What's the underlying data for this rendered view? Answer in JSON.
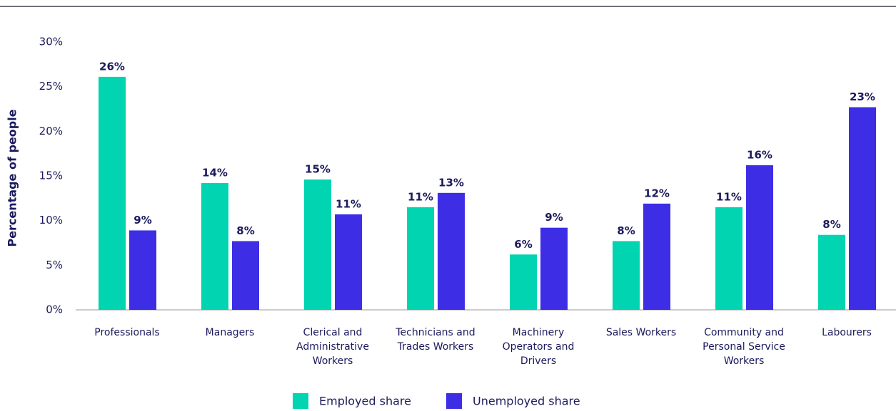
{
  "chart_data": {
    "type": "bar",
    "y_axis_label": "Percentage of people",
    "categories": [
      "Professionals",
      "Managers",
      "Clerical and Administrative Workers",
      "Technicians and Trades Workers",
      "Machinery Operators and Drivers",
      "Sales Workers",
      "Community and Personal Service Workers",
      "Labourers"
    ],
    "series": [
      {
        "name": "Employed share",
        "color": "#00d4b0",
        "values": [
          26.1,
          14.2,
          14.6,
          11.5,
          6.2,
          7.7,
          11.5,
          8.4
        ],
        "value_labels": [
          "26%",
          "14%",
          "15%",
          "11%",
          "6%",
          "8%",
          "11%",
          "8%"
        ]
      },
      {
        "name": "Unemployed share",
        "color": "#3d2ee6",
        "values": [
          8.9,
          7.7,
          10.7,
          13.1,
          9.2,
          11.9,
          16.2,
          22.7
        ],
        "value_labels": [
          "9%",
          "8%",
          "11%",
          "13%",
          "9%",
          "12%",
          "16%",
          "23%"
        ]
      }
    ],
    "ylim": [
      0,
      30
    ],
    "yticks": [
      {
        "value": 0,
        "label": "0%"
      },
      {
        "value": 5,
        "label": "5%"
      },
      {
        "value": 10,
        "label": "10%"
      },
      {
        "value": 15,
        "label": "15%"
      },
      {
        "value": 20,
        "label": "20%"
      },
      {
        "value": 25,
        "label": "25%"
      },
      {
        "value": 30,
        "label": "30%"
      }
    ],
    "grid": false,
    "legend": "bottom"
  }
}
